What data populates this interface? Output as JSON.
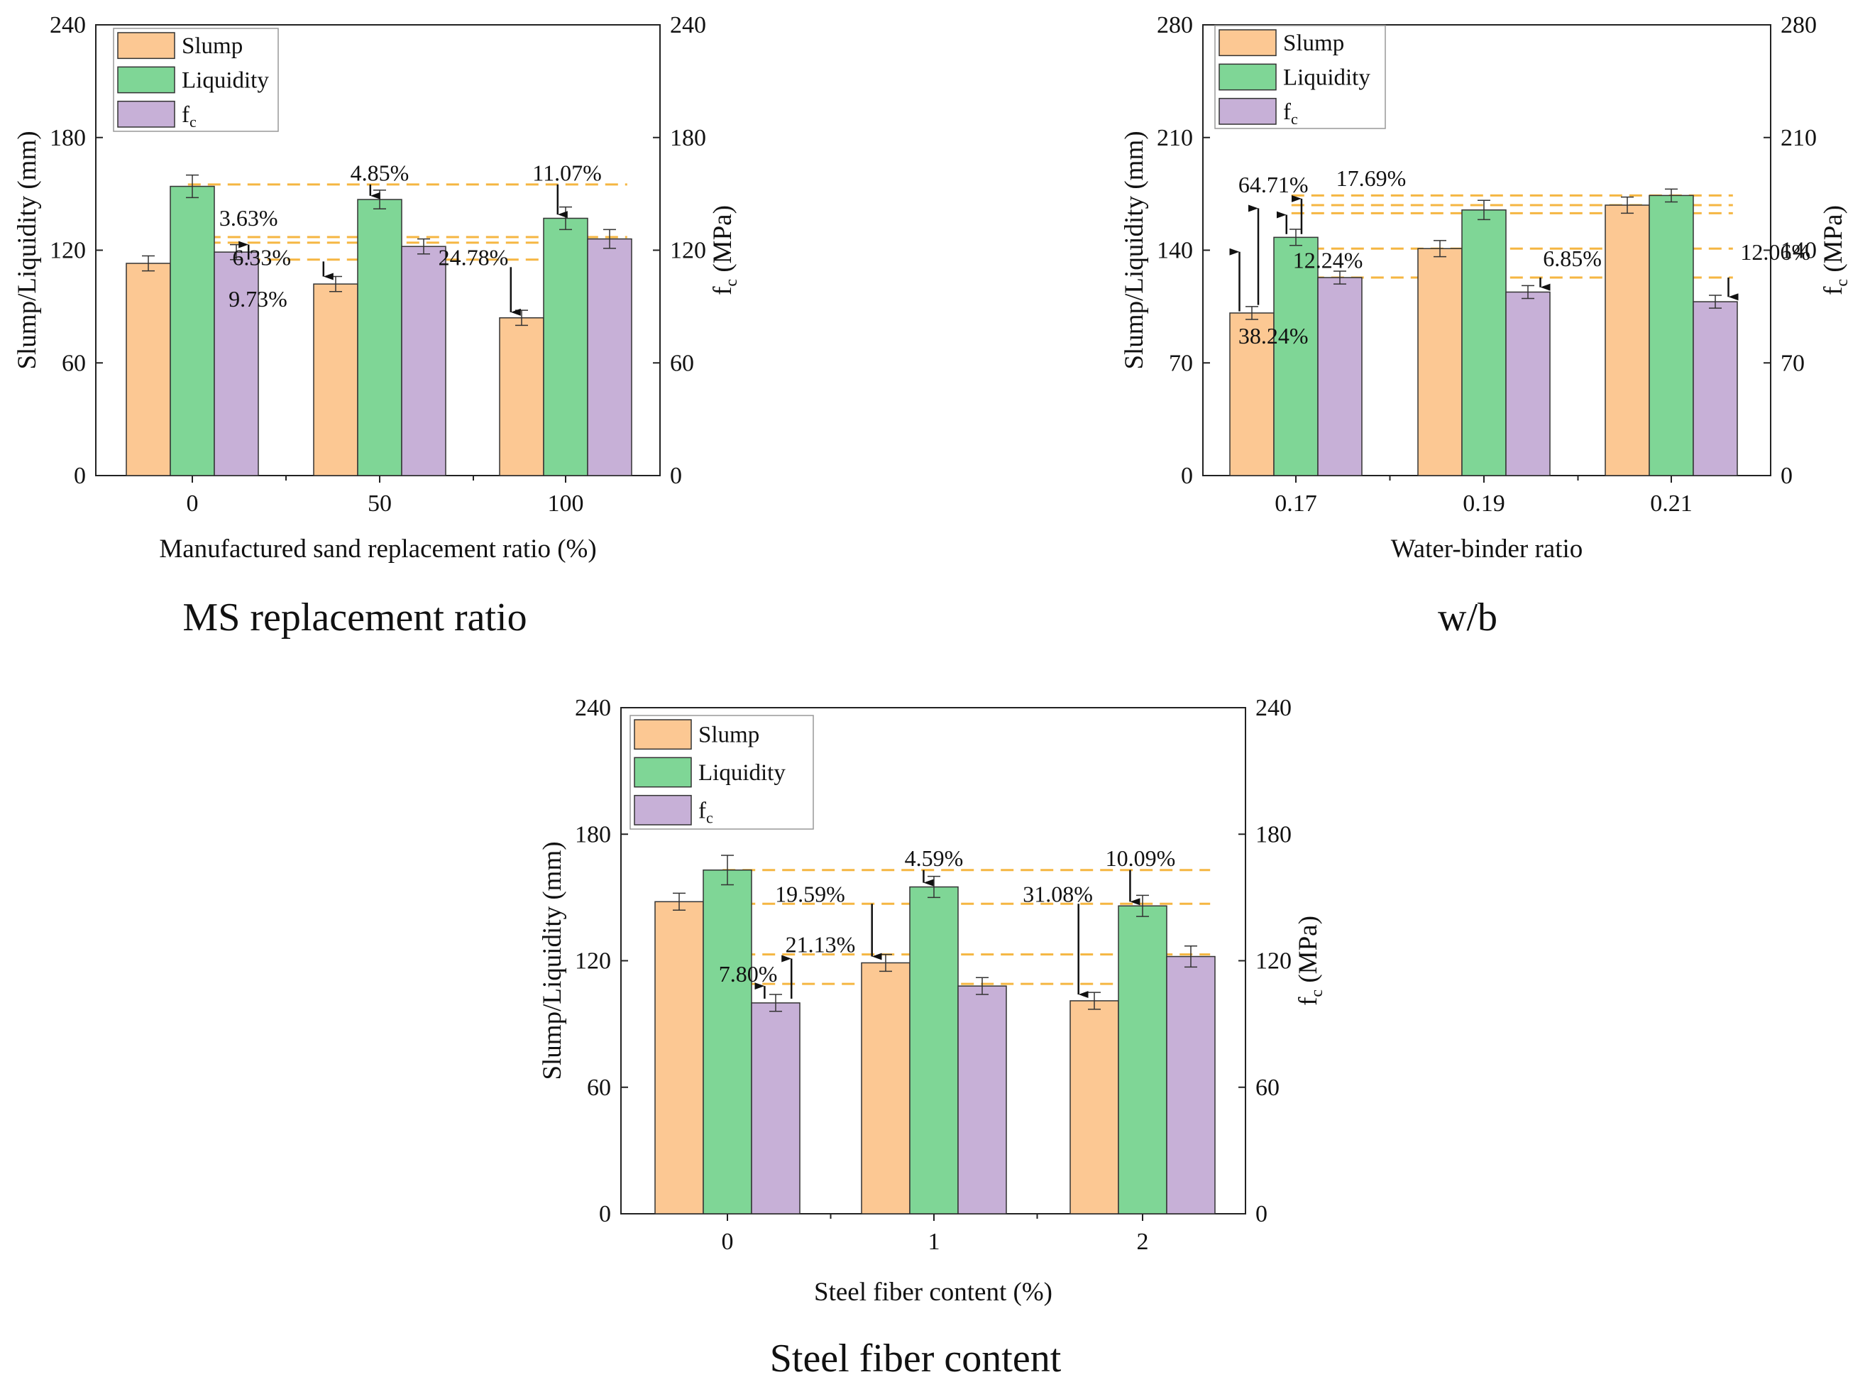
{
  "chart_data": [
    {
      "type": "bar",
      "caption": "MS replacement ratio",
      "xlabel": "Manufactured sand replacement ratio (%)",
      "ylabel": "Slump/Liquidity (mm)",
      "y2label": "f",
      "y2label_sub": "c",
      "y2label_unit": " (MPa)",
      "categories": [
        "0",
        "50",
        "100"
      ],
      "ylim": [
        0,
        240
      ],
      "yticks": [
        "0",
        "60",
        "120",
        "180",
        "240"
      ],
      "y2ticks": [
        "0",
        "60",
        "120",
        "180",
        "240"
      ],
      "series": [
        {
          "name": "Slump",
          "values": [
            113,
            102,
            84
          ],
          "errors": [
            4,
            4,
            4
          ]
        },
        {
          "name": "Liquidity",
          "values": [
            154,
            147,
            137
          ],
          "errors": [
            6,
            5,
            6
          ]
        },
        {
          "name": "f",
          "sub": "c",
          "values": [
            119,
            122,
            126
          ],
          "errors": [
            4,
            4,
            5
          ]
        }
      ],
      "reference_lines": [
        155,
        127,
        124,
        115
      ],
      "annotations": [
        {
          "text": "3.63%",
          "x": 0.3,
          "y": 133
        },
        {
          "text": "6.33%",
          "x": 0.37,
          "y": 112
        },
        {
          "text": "9.73%",
          "x": 0.35,
          "y": 90
        },
        {
          "text": "4.85%",
          "x": 1.0,
          "y": 157
        },
        {
          "text": "11.07%",
          "x": 2.0,
          "y": 157
        },
        {
          "text": "24.78%",
          "x": 1.5,
          "y": 112
        }
      ],
      "arrows": [
        {
          "x": 0.3,
          "y1": 115,
          "y2": 123
        },
        {
          "x": 0.7,
          "y1": 114,
          "y2": 106
        },
        {
          "x": 0.95,
          "y1": 155,
          "y2": 149
        },
        {
          "x": 1.7,
          "y1": 111,
          "y2": 87
        },
        {
          "x": 1.95,
          "y1": 155,
          "y2": 139
        }
      ]
    },
    {
      "type": "bar",
      "caption": "w/b",
      "xlabel": "Water-binder ratio",
      "ylabel": "Slump/Liquidity (mm)",
      "y2label": "f",
      "y2label_sub": "c",
      "y2label_unit": " (MPa)",
      "categories": [
        "0.17",
        "0.19",
        "0.21"
      ],
      "ylim": [
        0,
        280
      ],
      "yticks": [
        "0",
        "70",
        "140",
        "210",
        "280"
      ],
      "y2ticks": [
        "0",
        "70",
        "140",
        "210",
        "280"
      ],
      "series": [
        {
          "name": "Slump",
          "values": [
            101,
            141,
            168
          ],
          "errors": [
            4,
            5,
            5
          ]
        },
        {
          "name": "Liquidity",
          "values": [
            148,
            165,
            174
          ],
          "errors": [
            5,
            6,
            4
          ]
        },
        {
          "name": "f",
          "sub": "c",
          "values": [
            123,
            114,
            108
          ],
          "errors": [
            4,
            4,
            4
          ]
        }
      ],
      "reference_lines": [
        174,
        168,
        163,
        141,
        123
      ],
      "annotations": [
        {
          "text": "64.71%",
          "x": -0.12,
          "y": 176
        },
        {
          "text": "17.69%",
          "x": 0.4,
          "y": 180
        },
        {
          "text": "12.24%",
          "x": 0.17,
          "y": 129
        },
        {
          "text": "38.24%",
          "x": -0.12,
          "y": 82
        },
        {
          "text": "6.85%",
          "x": 1.47,
          "y": 130
        },
        {
          "text": "12.06%",
          "x": 2.55,
          "y": 134
        }
      ],
      "arrows": [
        {
          "x": -0.3,
          "y1": 102,
          "y2": 139
        },
        {
          "x": -0.2,
          "y1": 106,
          "y2": 166
        },
        {
          "x": -0.05,
          "y1": 150,
          "y2": 162
        },
        {
          "x": 0.03,
          "y1": 150,
          "y2": 172
        },
        {
          "x": 1.3,
          "y1": 123,
          "y2": 117
        },
        {
          "x": 2.3,
          "y1": 123,
          "y2": 111
        }
      ]
    },
    {
      "type": "bar",
      "caption": "Steel fiber content",
      "xlabel": "Steel fiber content (%)",
      "ylabel": "Slump/Liquidity (mm)",
      "y2label": "f",
      "y2label_sub": "c",
      "y2label_unit": " (MPa)",
      "categories": [
        "0",
        "1",
        "2"
      ],
      "ylim": [
        0,
        240
      ],
      "yticks": [
        "0",
        "60",
        "120",
        "180",
        "240"
      ],
      "y2ticks": [
        "0",
        "60",
        "120",
        "180",
        "240"
      ],
      "series": [
        {
          "name": "Slump",
          "values": [
            148,
            119,
            101
          ],
          "errors": [
            4,
            4,
            4
          ]
        },
        {
          "name": "Liquidity",
          "values": [
            163,
            155,
            146
          ],
          "errors": [
            7,
            5,
            5
          ]
        },
        {
          "name": "f",
          "sub": "c",
          "values": [
            100,
            108,
            122
          ],
          "errors": [
            4,
            4,
            5
          ]
        }
      ],
      "reference_lines": [
        163,
        147,
        123,
        109
      ],
      "annotations": [
        {
          "text": "4.59%",
          "x": 1.0,
          "y": 165
        },
        {
          "text": "10.09%",
          "x": 2.0,
          "y": 165
        },
        {
          "text": "19.59%",
          "x": 0.4,
          "y": 148
        },
        {
          "text": "31.08%",
          "x": 1.6,
          "y": 148
        },
        {
          "text": "21.13%",
          "x": 0.45,
          "y": 124
        },
        {
          "text": "7.80%",
          "x": 0.1,
          "y": 110
        }
      ],
      "arrows": [
        {
          "x": 0.18,
          "y1": 102,
          "y2": 108
        },
        {
          "x": 0.31,
          "y1": 102,
          "y2": 121
        },
        {
          "x": 0.7,
          "y1": 147,
          "y2": 122
        },
        {
          "x": 0.95,
          "y1": 163,
          "y2": 157
        },
        {
          "x": 1.7,
          "y1": 147,
          "y2": 104
        },
        {
          "x": 1.95,
          "y1": 163,
          "y2": 148
        }
      ]
    }
  ],
  "colors": {
    "Slump": "#fcc893",
    "Liquidity": "#7fd696",
    "fc": "#c7b0d7",
    "reference": "#f5b642"
  }
}
